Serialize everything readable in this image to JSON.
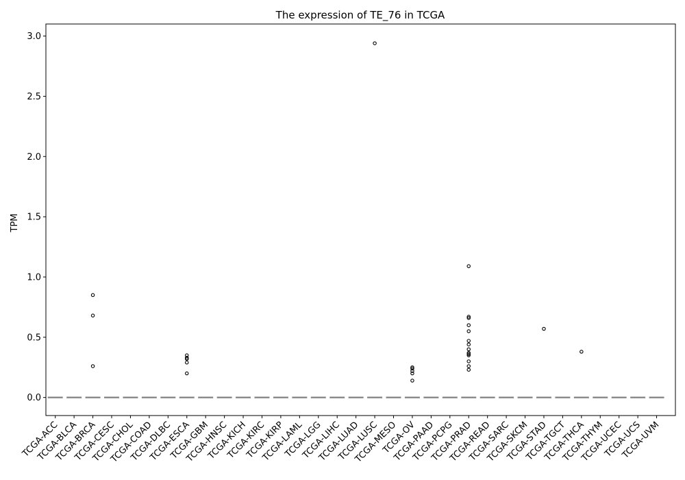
{
  "chart_data": {
    "type": "box",
    "title": "The expression of TE_76 in TCGA",
    "xlabel": "",
    "ylabel": "TPM",
    "ylim": [
      -0.15,
      3.1
    ],
    "yticks": [
      0.0,
      0.5,
      1.0,
      1.5,
      2.0,
      2.5,
      3.0
    ],
    "ytick_labels": [
      "0.0",
      "0.5",
      "1.0",
      "1.5",
      "2.0",
      "2.5",
      "3.0"
    ],
    "grid": false,
    "box_color": "#808080",
    "flier_color": "#000000",
    "categories": [
      "TCGA-ACC",
      "TCGA-BLCA",
      "TCGA-BRCA",
      "TCGA-CESC",
      "TCGA-CHOL",
      "TCGA-COAD",
      "TCGA-DLBC",
      "TCGA-ESCA",
      "TCGA-GBM",
      "TCGA-HNSC",
      "TCGA-KICH",
      "TCGA-KIRC",
      "TCGA-KIRP",
      "TCGA-LAML",
      "TCGA-LGG",
      "TCGA-LIHC",
      "TCGA-LUAD",
      "TCGA-LUSC",
      "TCGA-MESO",
      "TCGA-OV",
      "TCGA-PAAD",
      "TCGA-PCPG",
      "TCGA-PRAD",
      "TCGA-READ",
      "TCGA-SARC",
      "TCGA-SKCM",
      "TCGA-STAD",
      "TCGA-TGCT",
      "TCGA-THCA",
      "TCGA-THYM",
      "TCGA-UCEC",
      "TCGA-UCS",
      "TCGA-UVM"
    ],
    "medians": [
      0,
      0,
      0,
      0,
      0,
      0,
      0,
      0,
      0,
      0,
      0,
      0,
      0,
      0,
      0,
      0,
      0,
      0,
      0,
      0,
      0,
      0,
      0,
      0,
      0,
      0,
      0,
      0,
      0,
      0,
      0,
      0,
      0
    ],
    "outliers": [
      [],
      [],
      [
        0.85,
        0.68,
        0.26
      ],
      [],
      [],
      [],
      [],
      [
        0.35,
        0.33,
        0.32,
        0.29,
        0.2
      ],
      [],
      [],
      [],
      [],
      [],
      [],
      [],
      [],
      [],
      [
        2.94
      ],
      [],
      [
        0.25,
        0.24,
        0.22,
        0.2,
        0.14
      ],
      [],
      [],
      [
        1.09,
        0.67,
        0.66,
        0.6,
        0.55,
        0.47,
        0.44,
        0.4,
        0.37,
        0.36,
        0.35,
        0.3,
        0.26,
        0.23
      ],
      [],
      [],
      [],
      [
        0.57
      ],
      [],
      [
        0.38
      ],
      [],
      [],
      [],
      []
    ]
  }
}
